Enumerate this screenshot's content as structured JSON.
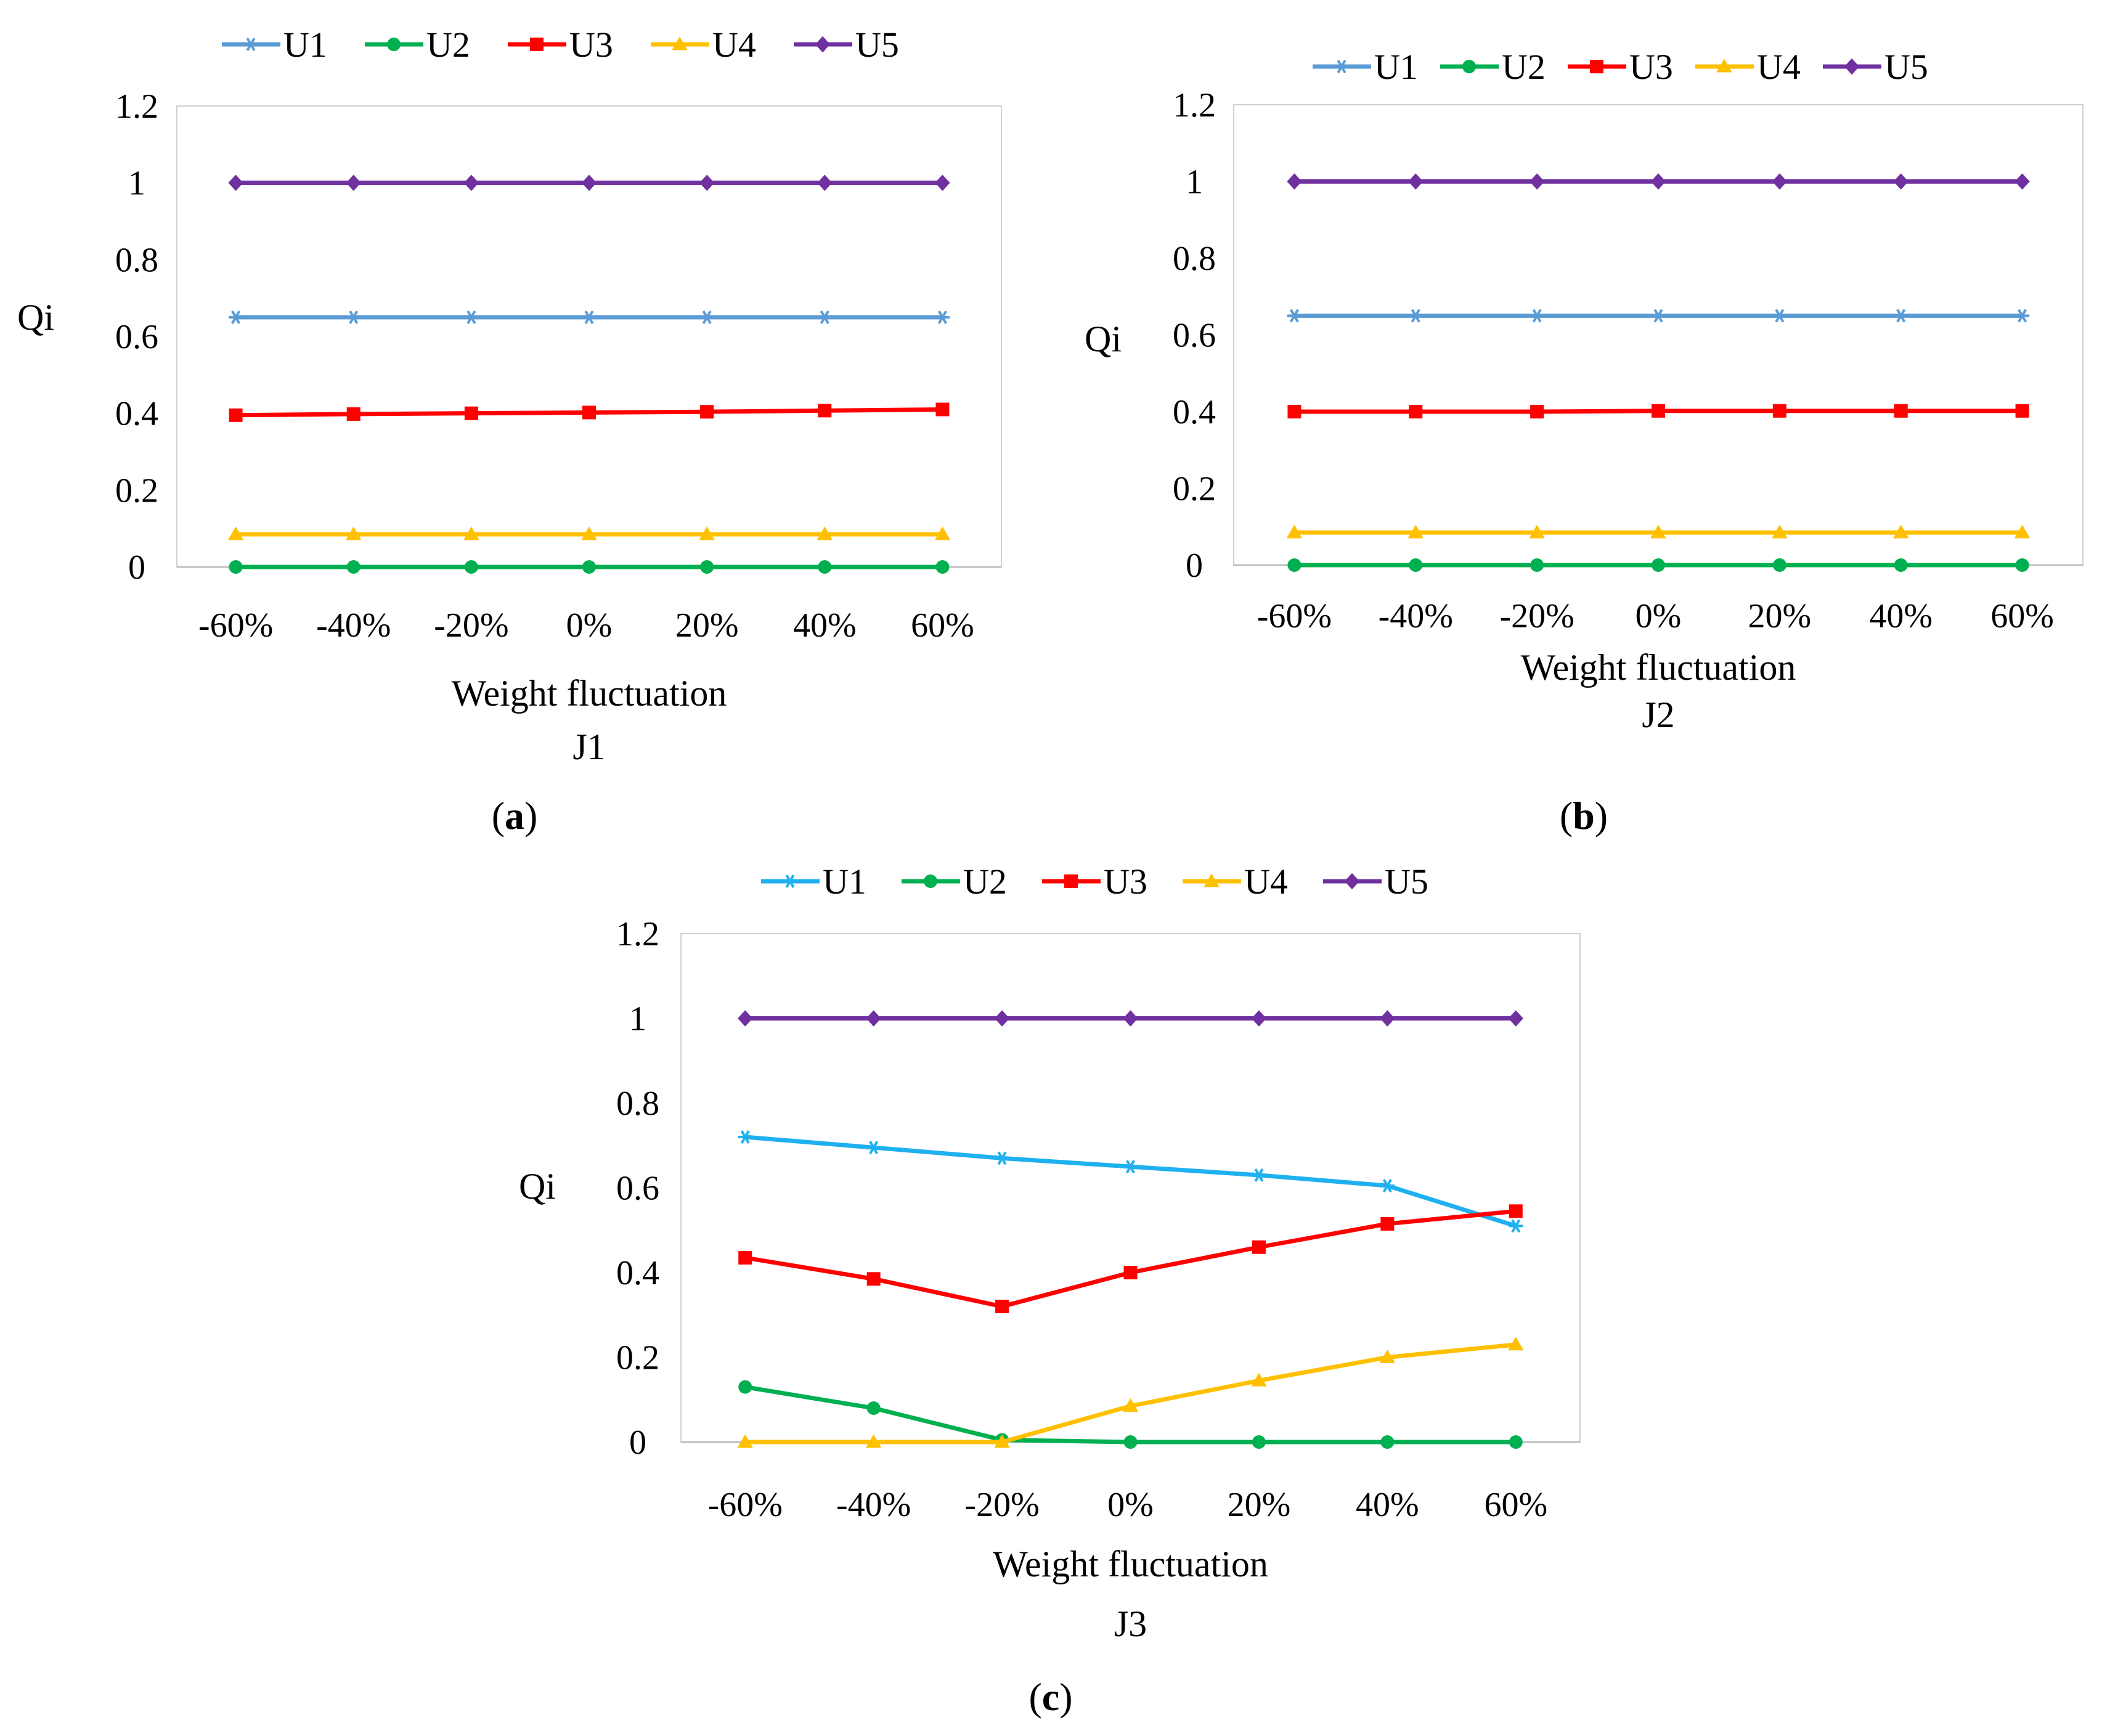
{
  "figure": {
    "panel_labels": [
      "a",
      "b",
      "c"
    ]
  },
  "chart_data": [
    {
      "type": "line",
      "title": "",
      "xlabel": "Weight fluctuation",
      "sublabel": "J1",
      "ylabel": "Qi",
      "categories": [
        "-60%",
        "-40%",
        "-20%",
        "0%",
        "20%",
        "40%",
        "60%"
      ],
      "yticks": [
        "0",
        "0.2",
        "0.4",
        "0.6",
        "0.8",
        "1",
        "1.2"
      ],
      "ylim": [
        0,
        1.2
      ],
      "grid": false,
      "legend": "top",
      "series": [
        {
          "name": "U1",
          "color": "#5b9bd5",
          "marker": "star",
          "values": [
            0.65,
            0.65,
            0.65,
            0.65,
            0.65,
            0.65,
            0.65
          ]
        },
        {
          "name": "U2",
          "color": "#00b050",
          "marker": "circle",
          "values": [
            0,
            0,
            0,
            0,
            0,
            0,
            0
          ]
        },
        {
          "name": "U3",
          "color": "#ff0000",
          "marker": "square",
          "values": [
            0.395,
            0.398,
            0.4,
            0.402,
            0.404,
            0.407,
            0.41
          ]
        },
        {
          "name": "U4",
          "color": "#ffc000",
          "marker": "triangle",
          "values": [
            0.085,
            0.085,
            0.085,
            0.085,
            0.085,
            0.085,
            0.085
          ]
        },
        {
          "name": "U5",
          "color": "#7030a0",
          "marker": "diamond",
          "values": [
            1,
            1,
            1,
            1,
            1,
            1,
            1
          ]
        }
      ]
    },
    {
      "type": "line",
      "title": "",
      "xlabel": "Weight fluctuation",
      "sublabel": "J2",
      "ylabel": "Qi",
      "categories": [
        "-60%",
        "-40%",
        "-20%",
        "0%",
        "20%",
        "40%",
        "60%"
      ],
      "yticks": [
        "0",
        "0.2",
        "0.4",
        "0.6",
        "0.8",
        "1",
        "1.2"
      ],
      "ylim": [
        0,
        1.2
      ],
      "grid": false,
      "legend": "top",
      "series": [
        {
          "name": "U1",
          "color": "#5b9bd5",
          "marker": "star",
          "values": [
            0.65,
            0.65,
            0.65,
            0.65,
            0.65,
            0.65,
            0.65
          ]
        },
        {
          "name": "U2",
          "color": "#00b050",
          "marker": "circle",
          "values": [
            0,
            0,
            0,
            0,
            0,
            0,
            0
          ]
        },
        {
          "name": "U3",
          "color": "#ff0000",
          "marker": "square",
          "values": [
            0.4,
            0.4,
            0.4,
            0.402,
            0.402,
            0.402,
            0.402
          ]
        },
        {
          "name": "U4",
          "color": "#ffc000",
          "marker": "triangle",
          "values": [
            0.085,
            0.085,
            0.085,
            0.085,
            0.085,
            0.085,
            0.085
          ]
        },
        {
          "name": "U5",
          "color": "#7030a0",
          "marker": "diamond",
          "values": [
            1,
            1,
            1,
            1,
            1,
            1,
            1
          ]
        }
      ]
    },
    {
      "type": "line",
      "title": "",
      "xlabel": "Weight fluctuation",
      "sublabel": "J3",
      "ylabel": "Qi",
      "categories": [
        "-60%",
        "-40%",
        "-20%",
        "0%",
        "20%",
        "40%",
        "60%"
      ],
      "yticks": [
        "0",
        "0.2",
        "0.4",
        "0.6",
        "0.8",
        "1",
        "1.2"
      ],
      "ylim": [
        0,
        1.2
      ],
      "grid": false,
      "legend": "top",
      "series": [
        {
          "name": "U1",
          "color": "#1fb0f0",
          "marker": "star",
          "values": [
            0.72,
            0.695,
            0.67,
            0.65,
            0.63,
            0.605,
            0.51
          ]
        },
        {
          "name": "U2",
          "color": "#00b050",
          "marker": "circle",
          "values": [
            0.13,
            0.08,
            0.005,
            0,
            0,
            0,
            0
          ]
        },
        {
          "name": "U3",
          "color": "#ff0000",
          "marker": "square",
          "values": [
            0.435,
            0.385,
            0.32,
            0.4,
            0.46,
            0.515,
            0.545
          ]
        },
        {
          "name": "U4",
          "color": "#ffc000",
          "marker": "triangle",
          "values": [
            0,
            0,
            0,
            0.085,
            0.145,
            0.2,
            0.23
          ]
        },
        {
          "name": "U5",
          "color": "#7030a0",
          "marker": "diamond",
          "values": [
            1,
            1,
            1,
            1,
            1,
            1,
            1
          ]
        }
      ]
    }
  ]
}
